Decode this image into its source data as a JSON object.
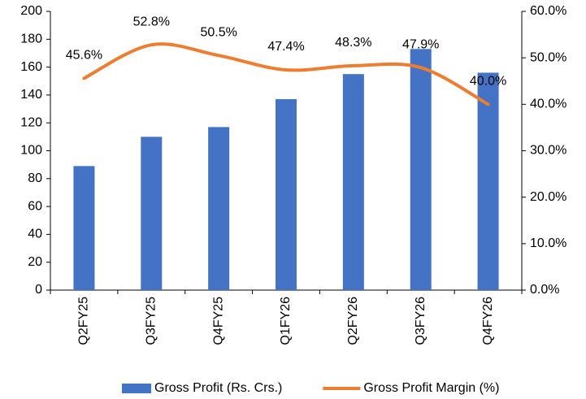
{
  "chart_data": {
    "type": "bar",
    "categories": [
      "Q2FY25",
      "Q3FY25",
      "Q4FY25",
      "Q1FY26",
      "Q2FY26",
      "Q3FY26",
      "Q4FY26"
    ],
    "series": [
      {
        "name": "Gross Profit (Rs. Crs.)",
        "type": "bar",
        "color": "#4472c4",
        "values": [
          89,
          110,
          117,
          137,
          155,
          173,
          156
        ]
      },
      {
        "name": "Gross Profit Margin (%)",
        "type": "line",
        "axis": "y2",
        "color": "#ed7d31",
        "smooth": true,
        "values": [
          45.6,
          52.8,
          50.5,
          47.4,
          48.3,
          47.9,
          40.0
        ],
        "value_labels": [
          "45.6%",
          "52.8%",
          "50.5%",
          "47.4%",
          "48.3%",
          "47.9%",
          "40.0%"
        ]
      }
    ],
    "ylim": [
      0,
      200
    ],
    "yticks": [
      0,
      20,
      40,
      60,
      80,
      100,
      120,
      140,
      160,
      180,
      200
    ],
    "y2lim": [
      0,
      60
    ],
    "y2ticks": [
      {
        "value": 0,
        "label": "0.0%"
      },
      {
        "value": 10,
        "label": "10.0%"
      },
      {
        "value": 20,
        "label": "20.0%"
      },
      {
        "value": 30,
        "label": "30.0%"
      },
      {
        "value": 40,
        "label": "40.0%"
      },
      {
        "value": 50,
        "label": "50.0%"
      },
      {
        "value": 60,
        "label": "60.0%"
      }
    ],
    "legend": "bottom",
    "grid": false
  }
}
